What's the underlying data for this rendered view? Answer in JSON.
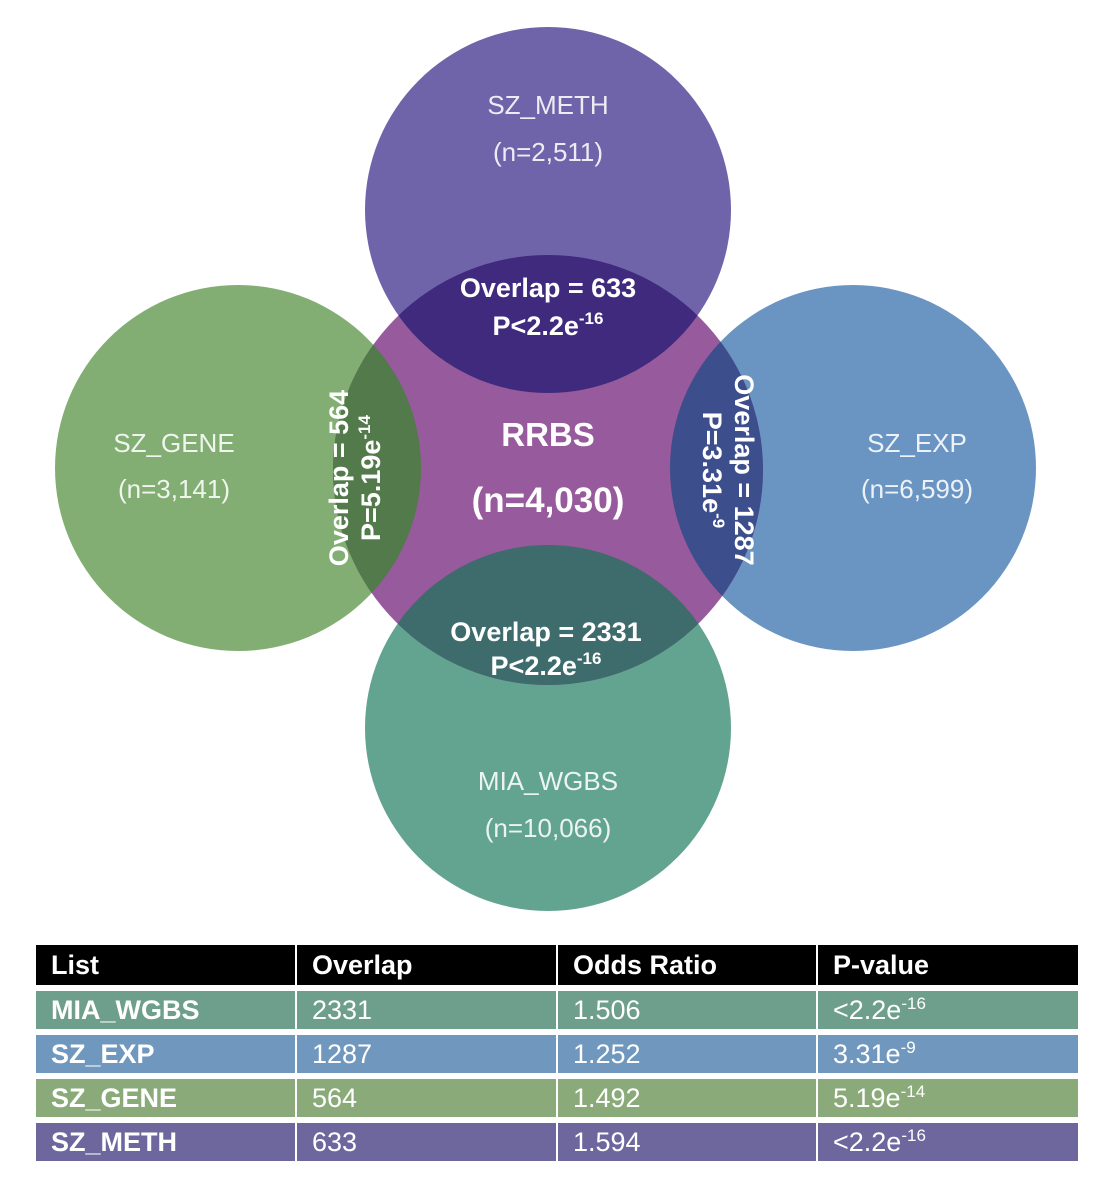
{
  "colors": {
    "sz_meth": "#5b4e9e",
    "sz_gene": "#74a564",
    "sz_exp": "#5a89bb",
    "mia_wgbs": "#519a84",
    "rrbs": "#8e4c94",
    "header": "#000000",
    "row_mia_wgbs": "#6e9f8d",
    "row_sz_exp": "#7098be",
    "row_sz_gene": "#8aab79",
    "row_sz_meth": "#6d679e"
  },
  "venn": {
    "center": {
      "name": "RRBS",
      "count": "(n=4,030)"
    },
    "sets": {
      "sz_meth": {
        "name": "SZ_METH",
        "count": "(n=2,511)"
      },
      "sz_gene": {
        "name": "SZ_GENE",
        "count": "(n=3,141)"
      },
      "sz_exp": {
        "name": "SZ_EXP",
        "count": "(n=6,599)"
      },
      "mia_wgbs": {
        "name": "MIA_WGBS",
        "count": "(n=10,066)"
      }
    },
    "overlaps": {
      "top": {
        "overlap": "Overlap = 633",
        "p_base": "P<2.2e",
        "p_exp": "-16"
      },
      "left": {
        "overlap": "Overlap = 564",
        "p_base": "P=5.19e",
        "p_exp": "-14"
      },
      "right": {
        "overlap": "Overlap = 1287",
        "p_base": "P=3.31e",
        "p_exp": "-9"
      },
      "bottom": {
        "overlap": "Overlap = 2331",
        "p_base": "P<2.2e",
        "p_exp": "-16"
      }
    }
  },
  "table": {
    "headers": [
      "List",
      "Overlap",
      "Odds Ratio",
      "P-value"
    ],
    "rows": [
      {
        "list": "MIA_WGBS",
        "overlap": "2331",
        "odds": "1.506",
        "p_base": "<2.2e",
        "p_exp": "-16"
      },
      {
        "list": "SZ_EXP",
        "overlap": "1287",
        "odds": "1.252",
        "p_base": "3.31e",
        "p_exp": "-9"
      },
      {
        "list": "SZ_GENE",
        "overlap": "564",
        "odds": "1.492",
        "p_base": "5.19e",
        "p_exp": "-14"
      },
      {
        "list": "SZ_METH",
        "overlap": "633",
        "odds": "1.594",
        "p_base": "<2.2e",
        "p_exp": "-16"
      }
    ]
  }
}
